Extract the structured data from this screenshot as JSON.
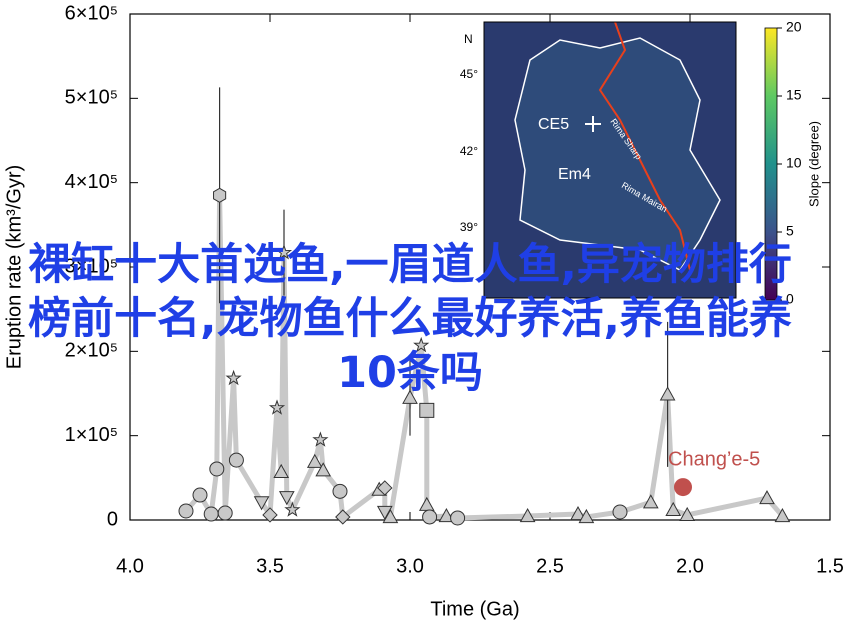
{
  "chart_data": {
    "type": "scatter",
    "xlabel": "Time (Ga)",
    "ylabel": "Eruption rate (km³/Gyr)",
    "xlim": [
      4.0,
      1.5
    ],
    "xticks": [
      {
        "value": 4.0,
        "label": "4.0"
      },
      {
        "value": 3.5,
        "label": "3.5"
      },
      {
        "value": 3.0,
        "label": "3.0"
      },
      {
        "value": 2.5,
        "label": "2.5"
      },
      {
        "value": 2.0,
        "label": "2.0"
      },
      {
        "value": 1.5,
        "label": "1.5"
      }
    ],
    "ylim": [
      0,
      600000
    ],
    "yticks": [
      0,
      {
        "value": 100000,
        "label": "1×10⁵"
      },
      {
        "value": 200000,
        "label": "2×10⁵"
      },
      {
        "value": 300000,
        "label": "3×10⁵"
      },
      {
        "value": 400000,
        "label": "4×10⁵"
      },
      {
        "value": 500000,
        "label": "5×10⁵"
      },
      {
        "value": 600000,
        "label": "6×10⁵"
      }
    ],
    "color": "#c8c8c8",
    "line_color": "#c8c8c8",
    "x": [
      3.8,
      3.75,
      3.71,
      3.69,
      3.68,
      3.66,
      3.63,
      3.62,
      3.53,
      3.5,
      3.475,
      3.46,
      3.45,
      3.44,
      3.42,
      3.34,
      3.32,
      3.31,
      3.25,
      3.24,
      3.11,
      3.09,
      3.09,
      3.07,
      3.0,
      2.96,
      2.94,
      2.94,
      2.93,
      2.87,
      2.83,
      2.58,
      2.4,
      2.37,
      2.25,
      2.14,
      2.08,
      2.06,
      2.01,
      1.725,
      1.67
    ],
    "values": [
      10700,
      29600,
      7100,
      60500,
      385000,
      8300,
      168000,
      71000,
      21000,
      6000,
      133000,
      57000,
      317000,
      27000,
      12000,
      69000,
      95000,
      59000,
      34000,
      3600,
      36000,
      38000,
      9500,
      3600,
      145000,
      207000,
      130000,
      18000,
      3600,
      4700,
      2400,
      4700,
      7100,
      3600,
      9500,
      21000,
      149000,
      12000,
      6000,
      26000,
      4700
    ],
    "markers": [
      "circle",
      "circle",
      "circle",
      "circle",
      "hexagon",
      "circle",
      "star",
      "circle",
      "triangle-down",
      "diamond",
      "star",
      "triangle",
      "star",
      "triangle-down",
      "star",
      "triangle",
      "star",
      "triangle",
      "circle",
      "diamond",
      "triangle",
      "diamond",
      "triangle-down",
      "triangle",
      "triangle",
      "star",
      "square",
      "triangle",
      "circle",
      "triangle",
      "circle",
      "triangle",
      "triangle",
      "triangle",
      "circle",
      "triangle",
      "triangle",
      "triangle",
      "triangle",
      "triangle",
      "triangle"
    ],
    "errors": [
      null,
      null,
      null,
      null,
      128000,
      null,
      null,
      null,
      null,
      null,
      null,
      null,
      51000,
      null,
      null,
      null,
      null,
      null,
      null,
      null,
      null,
      null,
      null,
      null,
      45000,
      null,
      null,
      null,
      null,
      null,
      null,
      null,
      null,
      null,
      null,
      null,
      86000,
      null,
      null,
      null,
      null
    ],
    "highlight": {
      "label": "Chang’e-5",
      "x": 2.025,
      "value": 39000,
      "color": "#c0504d"
    }
  },
  "inset": {
    "north": "N",
    "lat_labels": [
      "45°",
      "42°",
      "39°"
    ],
    "labels": [
      "CE5",
      "Em4",
      "Rima Sharp",
      "Rima Mairan"
    ],
    "colorbar": {
      "label": "Slope (degree)",
      "lim": [
        0,
        20
      ],
      "ticks": [
        20,
        15,
        10,
        5,
        0
      ]
    }
  },
  "overlay": {
    "text": "裸缸十大首选鱼,一眉道人鱼,异宠物排行榜前十名,宠物鱼什么最好养活,养鱼能养10条吗"
  }
}
